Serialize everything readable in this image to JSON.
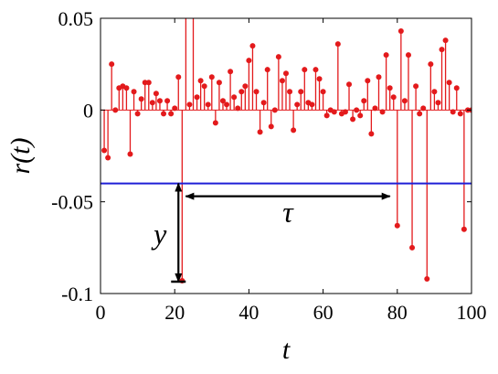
{
  "chart_data": {
    "type": "stem",
    "title": "",
    "xlabel": "t",
    "ylabel": "r(t)",
    "xlim": [
      0,
      100
    ],
    "ylim": [
      -0.1,
      0.05
    ],
    "x_ticks": [
      0,
      20,
      40,
      60,
      80,
      100
    ],
    "x_tick_labels": [
      "0",
      "20",
      "40",
      "60",
      "80",
      "100"
    ],
    "y_ticks": [
      0.05,
      0,
      -0.05,
      -0.1
    ],
    "y_tick_labels": [
      "0.05",
      "0",
      "-0.05",
      "-0.1"
    ],
    "grid": false,
    "stem_color": "#e31a1c",
    "threshold": {
      "y": -0.04,
      "color": "#1f1fd6"
    },
    "annotations": {
      "y_label": "y",
      "tau_label": "τ",
      "y_arrow": {
        "x": 21,
        "from": -0.04,
        "to": -0.0935
      },
      "tau_arrow": {
        "y": -0.047,
        "from": 23,
        "to": 78
      }
    },
    "series": [
      {
        "x": [
          1,
          2,
          3,
          4,
          5,
          6,
          7,
          8,
          9,
          10,
          11,
          12,
          13,
          14,
          15,
          16,
          17,
          18,
          19,
          20,
          21,
          22,
          23,
          24,
          25,
          26,
          27,
          28,
          29,
          30,
          31,
          32,
          33,
          34,
          35,
          36,
          37,
          38,
          39,
          40,
          41,
          42,
          43,
          44,
          45,
          46,
          47,
          48,
          49,
          50,
          51,
          52,
          53,
          54,
          55,
          56,
          57,
          58,
          59,
          60,
          61,
          62,
          63,
          64,
          65,
          66,
          67,
          68,
          69,
          70,
          71,
          72,
          73,
          74,
          75,
          76,
          77,
          78,
          79,
          80,
          81,
          82,
          83,
          84,
          85,
          86,
          87,
          88,
          89,
          90,
          91,
          92,
          93,
          94,
          95,
          96,
          97,
          98,
          99,
          100
        ],
        "values": [
          -0.022,
          -0.026,
          0.025,
          0.0,
          0.012,
          0.013,
          0.012,
          -0.024,
          0.01,
          -0.002,
          0.006,
          0.015,
          0.015,
          0.004,
          0.009,
          0.005,
          -0.002,
          0.005,
          -0.002,
          0.001,
          0.018,
          -0.093,
          0.06,
          0.003,
          0.06,
          0.007,
          0.016,
          0.013,
          0.003,
          0.018,
          -0.007,
          0.015,
          0.005,
          0.003,
          0.021,
          0.007,
          0.001,
          0.01,
          0.013,
          0.027,
          0.035,
          0.01,
          -0.012,
          0.004,
          0.022,
          -0.009,
          0.0,
          0.029,
          0.016,
          0.02,
          0.01,
          -0.011,
          0.003,
          0.01,
          0.022,
          0.004,
          0.003,
          0.022,
          0.017,
          0.01,
          -0.003,
          0.0,
          -0.001,
          0.036,
          -0.002,
          -0.001,
          0.014,
          -0.005,
          0.0,
          -0.003,
          0.005,
          0.016,
          -0.013,
          0.001,
          0.018,
          -0.001,
          0.03,
          0.012,
          0.007,
          -0.063,
          0.043,
          0.005,
          0.03,
          -0.075,
          0.013,
          -0.002,
          0.001,
          -0.092,
          0.025,
          0.01,
          0.004,
          0.033,
          0.038,
          0.015,
          -0.001,
          0.012,
          -0.002,
          -0.065,
          0.0,
          0.0
        ]
      }
    ]
  }
}
